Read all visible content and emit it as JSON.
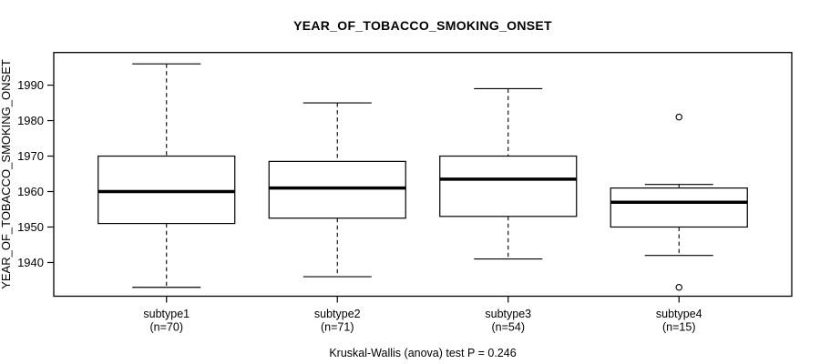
{
  "title": "YEAR_OF_TOBACCO_SMOKING_ONSET",
  "footer": "Kruskal-Wallis (anova) test P = 0.246",
  "colors": {
    "foreground": "#000000",
    "background": "#ffffff",
    "box_fill": "#ffffff",
    "median": "#000000"
  },
  "chart_data": {
    "type": "box",
    "title": "YEAR_OF_TOBACCO_SMOKING_ONSET",
    "ylabel": "YEAR_OF_TOBACCO_SMOKING_ONSET",
    "xlabel": "",
    "ylim": [
      1930.5,
      1999.2
    ],
    "yticks": [
      1940,
      1950,
      1960,
      1970,
      1980,
      1990
    ],
    "grid": false,
    "caption": "Kruskal-Wallis (anova) test P = 0.246",
    "groups": [
      {
        "label": "subtype1",
        "n": 70,
        "n_label": "(n=70)",
        "whisker_low": 1933,
        "q1": 1951,
        "median": 1960,
        "q3": 1970,
        "whisker_high": 1996,
        "outliers": []
      },
      {
        "label": "subtype2",
        "n": 71,
        "n_label": "(n=71)",
        "whisker_low": 1936,
        "q1": 1952.5,
        "median": 1961,
        "q3": 1968.5,
        "whisker_high": 1985,
        "outliers": []
      },
      {
        "label": "subtype3",
        "n": 54,
        "n_label": "(n=54)",
        "whisker_low": 1941,
        "q1": 1953,
        "median": 1963.5,
        "q3": 1970,
        "whisker_high": 1989,
        "outliers": []
      },
      {
        "label": "subtype4",
        "n": 15,
        "n_label": "(n=15)",
        "whisker_low": 1942,
        "q1": 1950,
        "median": 1957,
        "q3": 1961,
        "whisker_high": 1962,
        "outliers": [
          1981,
          1933
        ]
      }
    ]
  }
}
